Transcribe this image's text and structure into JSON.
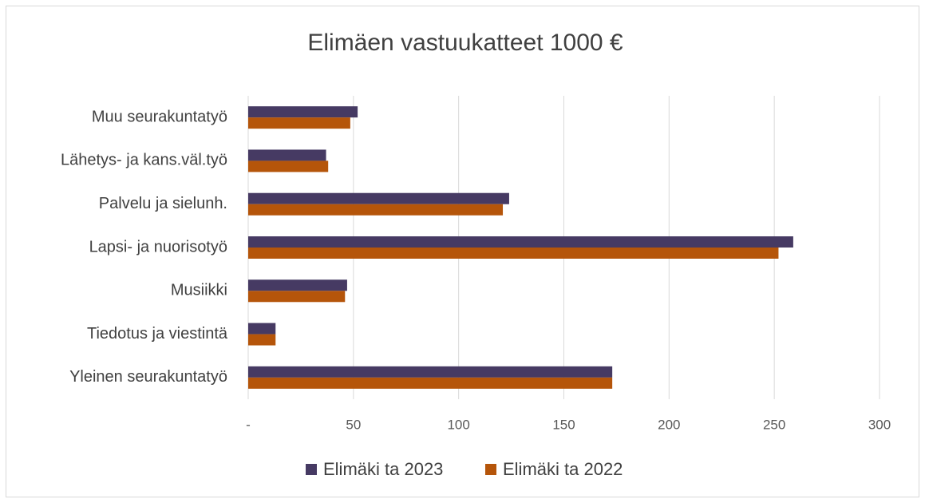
{
  "chart_data": {
    "type": "bar",
    "orientation": "horizontal",
    "title": "Elimäen vastuukatteet 1000 €",
    "categories": [
      "Muu seurakuntatyö",
      "Lähetys- ja kans.väl.työ",
      "Palvelu ja sielunh.",
      "Lapsi- ja nuorisotyö",
      "Musiikki",
      "Tiedotus ja viestintä",
      "Yleinen seurakuntatyö"
    ],
    "series": [
      {
        "name": "Elimäki ta 2023",
        "color": "#463a63",
        "values": [
          52,
          37,
          124,
          259,
          47,
          13,
          173
        ]
      },
      {
        "name": "Elimäki ta 2022",
        "color": "#b5550a",
        "values": [
          48.5,
          38,
          121,
          252,
          46,
          13,
          173
        ]
      }
    ],
    "xlim": [
      0,
      300
    ],
    "xticks": [
      {
        "value": 0,
        "label": "-"
      },
      50,
      100,
      150,
      200,
      250,
      300
    ],
    "grid": true,
    "legend": "bottom"
  }
}
